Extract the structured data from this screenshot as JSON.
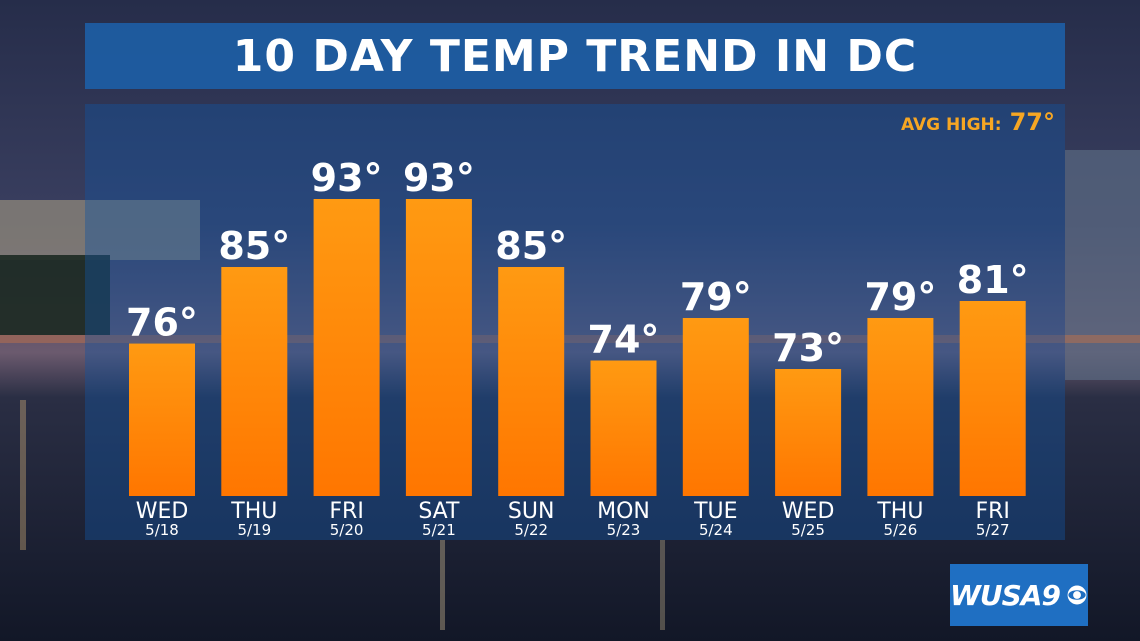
{
  "header": {
    "title": "10 DAY TEMP TREND IN DC"
  },
  "average": {
    "label": "AVG HIGH:",
    "value": "77°"
  },
  "logo": {
    "text": "WUSA9",
    "icon": "cbs-eye-icon"
  },
  "colors": {
    "title_bar": "#1c60a8",
    "bar_top": "#ff9a12",
    "bar_bottom": "#ff7600",
    "avg_text": "#f6a623",
    "text": "#ffffff"
  },
  "chart_data": {
    "type": "bar",
    "title": "10 DAY TEMP TREND IN DC",
    "categories": [
      "WED",
      "THU",
      "FRI",
      "SAT",
      "SUN",
      "MON",
      "TUE",
      "WED",
      "THU",
      "FRI"
    ],
    "dates": [
      "5/18",
      "5/19",
      "5/20",
      "5/21",
      "5/22",
      "5/23",
      "5/24",
      "5/25",
      "5/26",
      "5/27"
    ],
    "values": [
      76,
      85,
      93,
      93,
      85,
      74,
      79,
      73,
      79,
      81
    ],
    "value_labels": [
      "76°",
      "85°",
      "93°",
      "93°",
      "85°",
      "74°",
      "79°",
      "73°",
      "79°",
      "81°"
    ],
    "unit": "°",
    "annotation": "AVG HIGH: 77°",
    "grid": false,
    "legend": "none"
  }
}
